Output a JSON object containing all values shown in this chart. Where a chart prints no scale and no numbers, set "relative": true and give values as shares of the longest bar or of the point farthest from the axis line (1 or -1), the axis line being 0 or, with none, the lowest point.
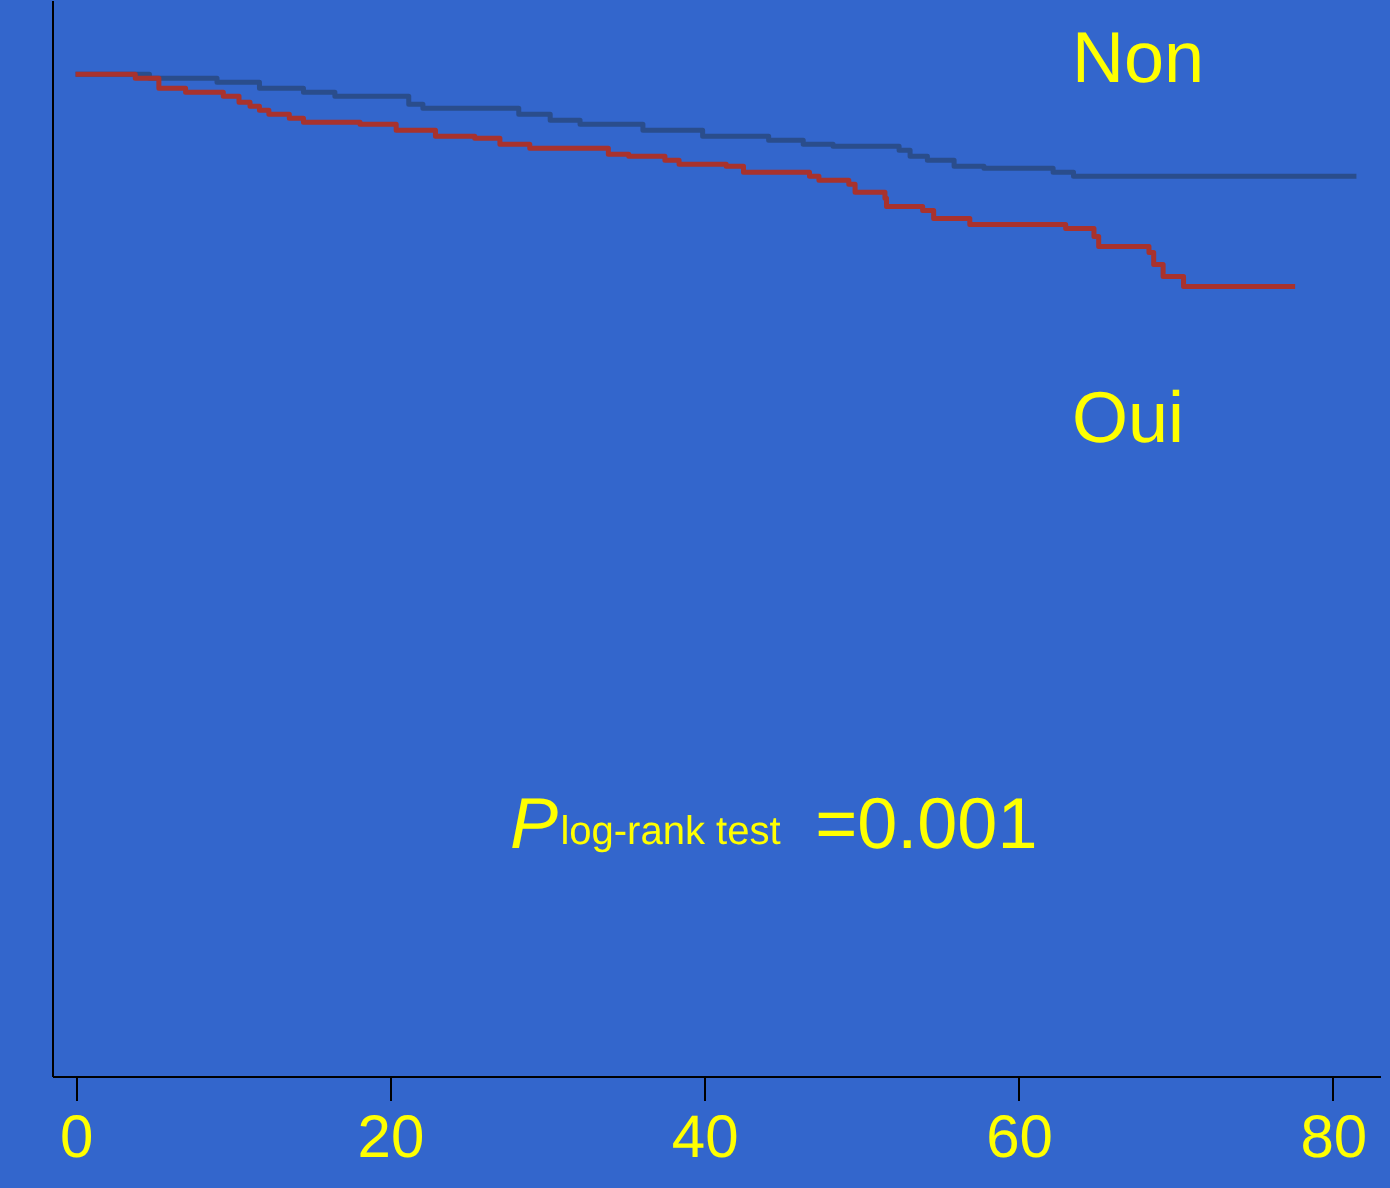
{
  "chart_data": {
    "type": "step",
    "relative": true,
    "xlim": [
      -1.5,
      83
    ],
    "xticks": [
      0,
      20,
      40,
      60,
      80
    ],
    "grid": false,
    "series": [
      {
        "name": "Non",
        "color": "#2a4d8c",
        "x": [
          0,
          4.7,
          9.0,
          11.7,
          14.5,
          16.5,
          21.2,
          22.1,
          28.2,
          30.2,
          32.1,
          36.1,
          39.9,
          44.1,
          46.3,
          48.2,
          52.4,
          53.1,
          54.2,
          55.9,
          57.8,
          62.2,
          63.5,
          81.5
        ],
        "values": [
          1.0,
          0.996,
          0.992,
          0.986,
          0.982,
          0.978,
          0.97,
          0.966,
          0.96,
          0.954,
          0.95,
          0.944,
          0.938,
          0.934,
          0.93,
          0.928,
          0.924,
          0.918,
          0.914,
          0.908,
          0.906,
          0.902,
          0.898,
          0.898
        ]
      },
      {
        "name": "Oui",
        "color": "#a8322d",
        "x": [
          0,
          3.8,
          5.3,
          7.0,
          9.4,
          10.4,
          11.1,
          11.7,
          12.3,
          13.6,
          14.5,
          18.1,
          20.4,
          22.9,
          25.4,
          27.0,
          28.9,
          33.9,
          35.2,
          37.5,
          38.4,
          41.4,
          42.5,
          46.7,
          47.3,
          49.2,
          49.6,
          51.5,
          51.6,
          53.9,
          54.6,
          56.9,
          63.0,
          64.8,
          65.1,
          68.3,
          68.6,
          69.2,
          70.5,
          77.6
        ],
        "values": [
          1.0,
          0.996,
          0.986,
          0.982,
          0.978,
          0.972,
          0.968,
          0.964,
          0.96,
          0.956,
          0.952,
          0.95,
          0.944,
          0.938,
          0.936,
          0.93,
          0.926,
          0.92,
          0.918,
          0.914,
          0.91,
          0.908,
          0.902,
          0.898,
          0.894,
          0.89,
          0.882,
          0.876,
          0.868,
          0.864,
          0.856,
          0.85,
          0.846,
          0.838,
          0.828,
          0.822,
          0.81,
          0.798,
          0.788,
          0.788
        ]
      }
    ],
    "annotations": [
      "P$_{log-rank test}$=0.001"
    ]
  }
}
